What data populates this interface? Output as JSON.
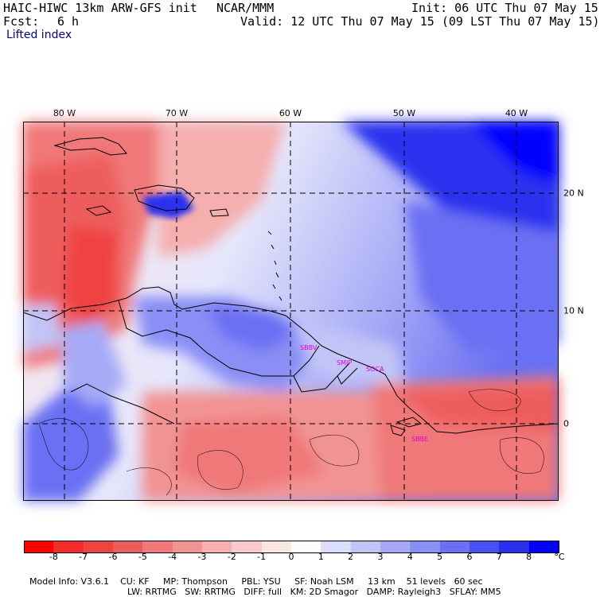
{
  "header": {
    "model_title": "HAIC-HIWC 13km ARW-GFS init",
    "org": "NCAR/MMM",
    "init": "Init: 06 UTC Thu 07 May 15",
    "fcst_label": "Fcst:",
    "fcst_value": "6 h",
    "valid": "Valid: 12 UTC Thu 07 May 15 (09 LST Thu 07 May 15)",
    "field": "Lifted index"
  },
  "map": {
    "lon_labels": [
      "80 W",
      "70 W",
      "60 W",
      "50 W",
      "40 W"
    ],
    "lat_labels": [
      "20 N",
      "10 N",
      "0"
    ],
    "stations": [
      "SBBV",
      "SMJP",
      "SOCA",
      "SBBE"
    ],
    "station_color": "#e000e0"
  },
  "colorbar": {
    "unit": "°C",
    "ticks": [
      "-8",
      "-7",
      "-6",
      "-5",
      "-4",
      "-3",
      "-2",
      "-1",
      "0",
      "1",
      "2",
      "3",
      "4",
      "5",
      "6",
      "7",
      "8"
    ],
    "colors": [
      "#ff0000",
      "#f32c2c",
      "#ef4343",
      "#ee5d5d",
      "#f07878",
      "#f29393",
      "#f5afaf",
      "#f8cbcb",
      "#fbe6e6",
      "#ffffff",
      "#dcdcff",
      "#c1c4f7",
      "#a6aaf6",
      "#8a8ff5",
      "#6a70f3",
      "#4a50f2",
      "#2a30ef",
      "#0000ff"
    ]
  },
  "footer": {
    "line1": [
      "Model Info: V3.6.1",
      "CU: KF",
      "MP: Thompson",
      "PBL: YSU",
      "SF: Noah LSM",
      "13 km",
      "51 levels",
      "60 sec"
    ],
    "line2": [
      "LW: RRTMG",
      "SW: RRTMG",
      "DIFF: full",
      "KM: 2D Smagor",
      "DAMP: Rayleigh3",
      "SFLAY: MM5"
    ]
  }
}
